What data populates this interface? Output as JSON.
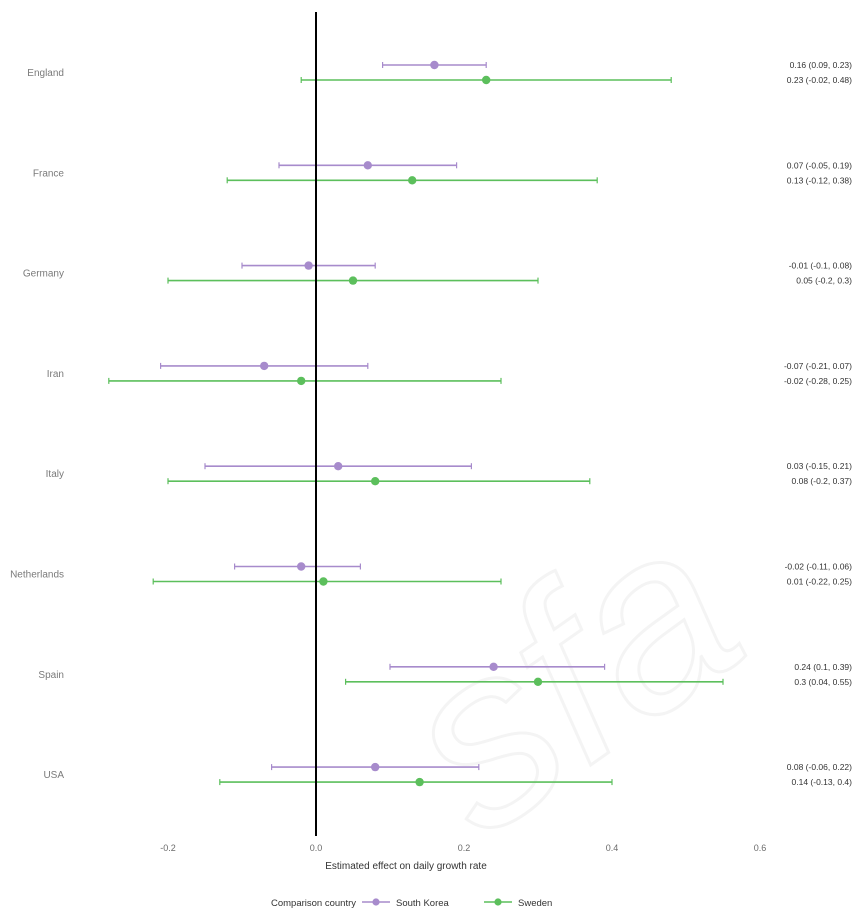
{
  "chart_data": {
    "type": "forest",
    "xlabel": "Estimated effect on daily growth rate",
    "xlim": [
      -0.3,
      0.6
    ],
    "x_ticks": [
      -0.2,
      0.0,
      0.2,
      0.4,
      0.6
    ],
    "x_tick_labels": [
      "-0.2",
      "0.0",
      "0.2",
      "0.4",
      "0.6"
    ],
    "reference_line": 0,
    "legend": {
      "title": "Comparison country",
      "position": "bottom"
    },
    "series": [
      {
        "name": "South Korea",
        "color": "#a78bcc"
      },
      {
        "name": "Sweden",
        "color": "#5cbf5c"
      }
    ],
    "rows": [
      {
        "country": "England",
        "estimates": [
          {
            "series": "South Korea",
            "est": 0.16,
            "lo": 0.09,
            "hi": 0.23,
            "label": "0.16 (0.09, 0.23)"
          },
          {
            "series": "Sweden",
            "est": 0.23,
            "lo": -0.02,
            "hi": 0.48,
            "label": "0.23 (-0.02, 0.48)"
          }
        ]
      },
      {
        "country": "France",
        "estimates": [
          {
            "series": "South Korea",
            "est": 0.07,
            "lo": -0.05,
            "hi": 0.19,
            "label": "0.07 (-0.05, 0.19)"
          },
          {
            "series": "Sweden",
            "est": 0.13,
            "lo": -0.12,
            "hi": 0.38,
            "label": "0.13 (-0.12, 0.38)"
          }
        ]
      },
      {
        "country": "Germany",
        "estimates": [
          {
            "series": "South Korea",
            "est": -0.01,
            "lo": -0.1,
            "hi": 0.08,
            "label": "-0.01 (-0.1, 0.08)"
          },
          {
            "series": "Sweden",
            "est": 0.05,
            "lo": -0.2,
            "hi": 0.3,
            "label": "0.05 (-0.2, 0.3)"
          }
        ]
      },
      {
        "country": "Iran",
        "estimates": [
          {
            "series": "South Korea",
            "est": -0.07,
            "lo": -0.21,
            "hi": 0.07,
            "label": "-0.07 (-0.21, 0.07)"
          },
          {
            "series": "Sweden",
            "est": -0.02,
            "lo": -0.28,
            "hi": 0.25,
            "label": "-0.02 (-0.28, 0.25)"
          }
        ]
      },
      {
        "country": "Italy",
        "estimates": [
          {
            "series": "South Korea",
            "est": 0.03,
            "lo": -0.15,
            "hi": 0.21,
            "label": "0.03 (-0.15, 0.21)"
          },
          {
            "series": "Sweden",
            "est": 0.08,
            "lo": -0.2,
            "hi": 0.37,
            "label": "0.08 (-0.2, 0.37)"
          }
        ]
      },
      {
        "country": "Netherlands",
        "estimates": [
          {
            "series": "South Korea",
            "est": -0.02,
            "lo": -0.11,
            "hi": 0.06,
            "label": "-0.02 (-0.11, 0.06)"
          },
          {
            "series": "Sweden",
            "est": 0.01,
            "lo": -0.22,
            "hi": 0.25,
            "label": "0.01 (-0.22, 0.25)"
          }
        ]
      },
      {
        "country": "Spain",
        "estimates": [
          {
            "series": "South Korea",
            "est": 0.24,
            "lo": 0.1,
            "hi": 0.39,
            "label": "0.24 (0.1, 0.39)"
          },
          {
            "series": "Sweden",
            "est": 0.3,
            "lo": 0.04,
            "hi": 0.55,
            "label": "0.3 (0.04, 0.55)"
          }
        ]
      },
      {
        "country": "USA",
        "estimates": [
          {
            "series": "South Korea",
            "est": 0.08,
            "lo": -0.06,
            "hi": 0.22,
            "label": "0.08 (-0.06, 0.22)"
          },
          {
            "series": "Sweden",
            "est": 0.14,
            "lo": -0.13,
            "hi": 0.4,
            "label": "0.14 (-0.13, 0.4)"
          }
        ]
      }
    ]
  }
}
